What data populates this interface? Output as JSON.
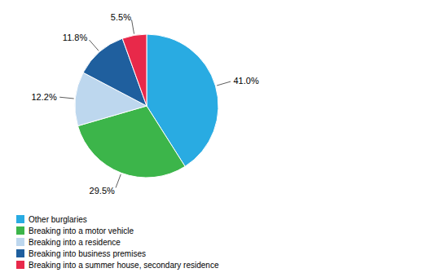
{
  "chart_data": {
    "type": "pie",
    "categories": [
      "Other burglaries",
      "Breaking into a motor vehicle",
      "Breaking into a residence",
      "Breaking into business premises",
      "Breaking into a summer house, secondary residence"
    ],
    "values": [
      41.0,
      29.5,
      12.2,
      11.8,
      5.5
    ],
    "value_labels": [
      "41.0%",
      "29.5%",
      "12.2%",
      "11.8%",
      "5.5%"
    ],
    "colors": [
      "#29ABE2",
      "#3CB54A",
      "#BDD7EE",
      "#1F5F9E",
      "#E8294A"
    ],
    "data_labels": true,
    "legend": "bottom"
  }
}
